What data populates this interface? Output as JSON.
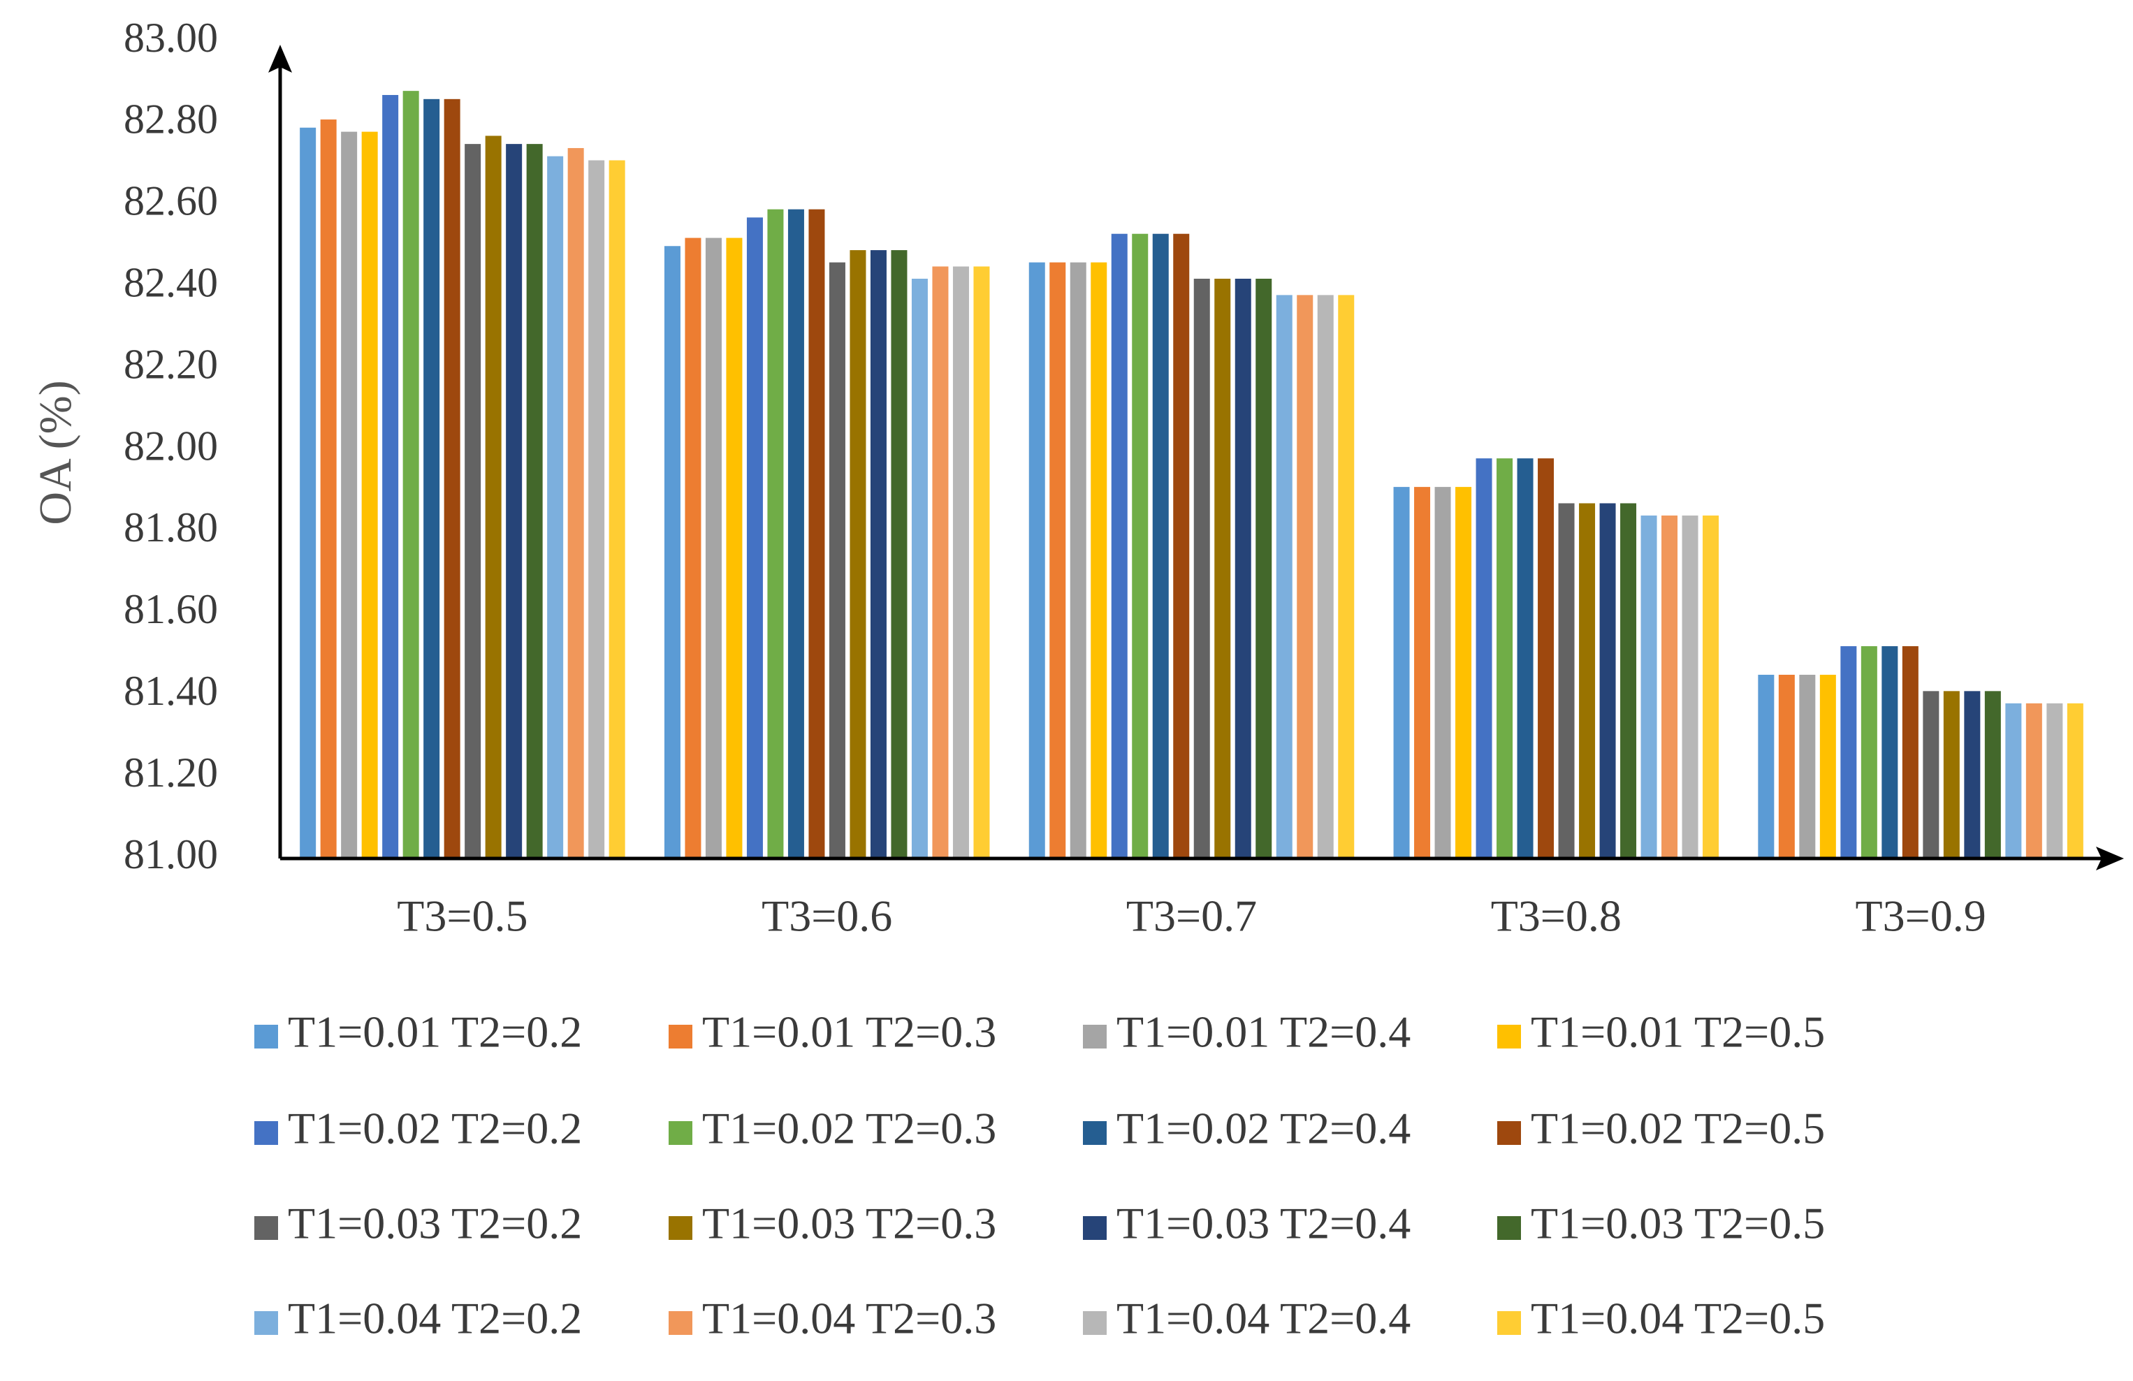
{
  "chart_data": {
    "type": "bar",
    "title": "",
    "xlabel": "",
    "ylabel": "OA (%)",
    "ylim": [
      81.0,
      83.0
    ],
    "yticks": [
      "81.00",
      "81.20",
      "81.40",
      "81.60",
      "81.80",
      "82.00",
      "82.20",
      "82.40",
      "82.60",
      "82.80",
      "83.00"
    ],
    "grid": false,
    "legend_position": "bottom",
    "categories": [
      "T3=0.5",
      "T3=0.6",
      "T3=0.7",
      "T3=0.8",
      "T3=0.9"
    ],
    "series": [
      {
        "name": "T1=0.01 T2=0.2",
        "color": "#5B9BD5",
        "values": [
          82.79,
          82.5,
          82.46,
          81.91,
          81.45
        ]
      },
      {
        "name": "T1=0.01 T2=0.3",
        "color": "#ED7D31",
        "values": [
          82.81,
          82.52,
          82.46,
          81.91,
          81.45
        ]
      },
      {
        "name": "T1=0.01 T2=0.4",
        "color": "#A5A5A5",
        "values": [
          82.78,
          82.52,
          82.46,
          81.91,
          81.45
        ]
      },
      {
        "name": "T1=0.01 T2=0.5",
        "color": "#FFC000",
        "values": [
          82.78,
          82.52,
          82.46,
          81.91,
          81.45
        ]
      },
      {
        "name": "T1=0.02 T2=0.2",
        "color": "#4472C4",
        "values": [
          82.87,
          82.57,
          82.53,
          81.98,
          81.52
        ]
      },
      {
        "name": "T1=0.02 T2=0.3",
        "color": "#70AD47",
        "values": [
          82.88,
          82.59,
          82.53,
          81.98,
          81.52
        ]
      },
      {
        "name": "T1=0.02 T2=0.4",
        "color": "#255E91",
        "values": [
          82.86,
          82.59,
          82.53,
          81.98,
          81.52
        ]
      },
      {
        "name": "T1=0.02 T2=0.5",
        "color": "#9E480E",
        "values": [
          82.86,
          82.59,
          82.53,
          81.98,
          81.52
        ]
      },
      {
        "name": "T1=0.03 T2=0.2",
        "color": "#636363",
        "values": [
          82.75,
          82.46,
          82.42,
          81.87,
          81.41
        ]
      },
      {
        "name": "T1=0.03 T2=0.3",
        "color": "#997300",
        "values": [
          82.77,
          82.49,
          82.42,
          81.87,
          81.41
        ]
      },
      {
        "name": "T1=0.03 T2=0.4",
        "color": "#264478",
        "values": [
          82.75,
          82.49,
          82.42,
          81.87,
          81.41
        ]
      },
      {
        "name": "T1=0.03 T2=0.5",
        "color": "#43682B",
        "values": [
          82.75,
          82.49,
          82.42,
          81.87,
          81.41
        ]
      },
      {
        "name": "T1=0.04 T2=0.2",
        "color": "#7CAFDD",
        "values": [
          82.72,
          82.42,
          82.38,
          81.84,
          81.38
        ]
      },
      {
        "name": "T1=0.04 T2=0.3",
        "color": "#F1975A",
        "values": [
          82.74,
          82.45,
          82.38,
          81.84,
          81.38
        ]
      },
      {
        "name": "T1=0.04 T2=0.4",
        "color": "#B7B7B7",
        "values": [
          82.71,
          82.45,
          82.38,
          81.84,
          81.38
        ]
      },
      {
        "name": "T1=0.04 T2=0.5",
        "color": "#FFCD33",
        "values": [
          82.71,
          82.45,
          82.38,
          81.84,
          81.38
        ]
      }
    ]
  }
}
